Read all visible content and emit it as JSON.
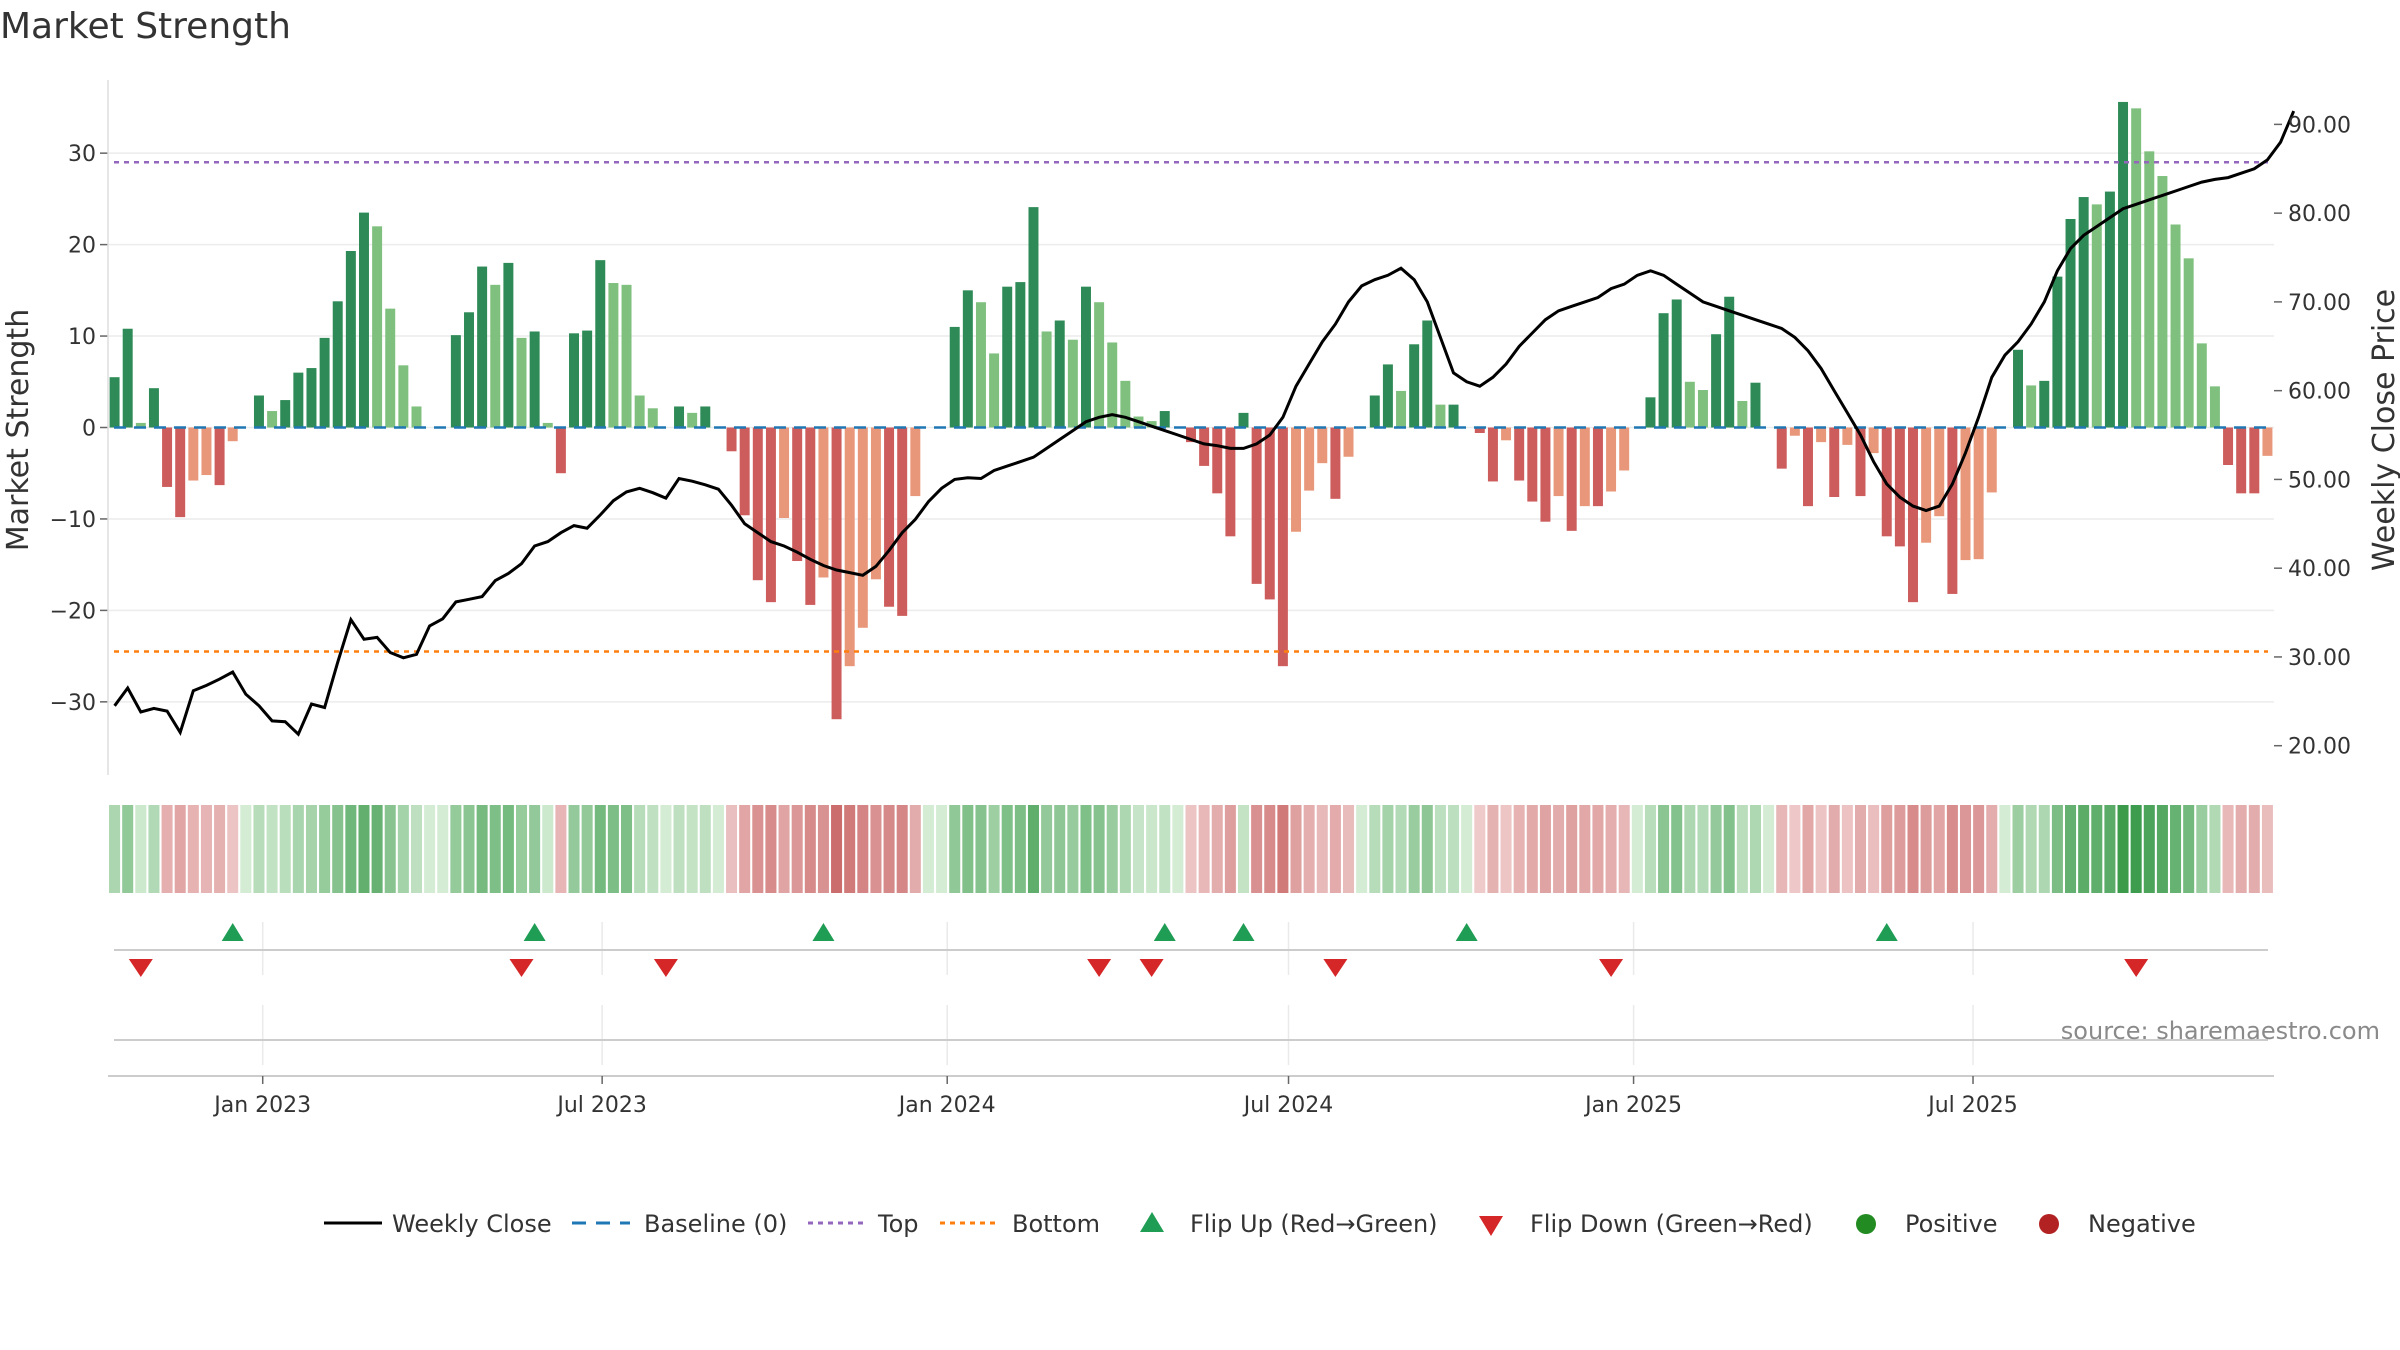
{
  "title": "Market Strength",
  "source": "source: sharemaestro.com",
  "colors": {
    "dark_green": "#2e8b57",
    "light_green": "#7fc07f",
    "dark_red": "#cd5c5c",
    "light_red": "#e8977a",
    "baseline": "#1f77b4",
    "top": "#9467bd",
    "bottom": "#ff7f0e",
    "close": "#000000",
    "flip_up": "#1f9d55",
    "flip_down": "#d62728",
    "positive": "#228b22",
    "negative": "#b22222"
  },
  "chart_data": {
    "type": "bar",
    "x_start": "2022-10-14",
    "x_step_days": 7,
    "x_ticks": [
      "Jan 2023",
      "Jul 2023",
      "Jan 2024",
      "Jul 2024",
      "Jan 2025",
      "Jul 2025"
    ],
    "y_left": {
      "label": "Market Strength",
      "ticks": [
        -30,
        -20,
        -10,
        0,
        10,
        20,
        30
      ],
      "range": [
        -38,
        38
      ]
    },
    "y_right": {
      "label": "Weekly Close Price",
      "ticks": [
        "20.00",
        "30.00",
        "40.00",
        "50.00",
        "60.00",
        "70.00",
        "80.00",
        "90.00"
      ],
      "range": [
        16.7,
        95
      ]
    },
    "top_level": 29,
    "bottom_level": -24.5,
    "baseline": 0,
    "strength": [
      5.5,
      10.8,
      0.5,
      4.3,
      -6.5,
      -9.8,
      -5.8,
      -5.2,
      -6.3,
      -1.5,
      0,
      3.5,
      1.8,
      3,
      6,
      6.5,
      9.8,
      13.8,
      19.3,
      23.5,
      22,
      13,
      6.8,
      2.3,
      0,
      0,
      10.1,
      12.6,
      17.6,
      15.6,
      18,
      9.8,
      10.5,
      0.5,
      -5.0,
      10.3,
      10.6,
      18.3,
      15.8,
      15.6,
      3.5,
      2.1,
      0,
      2.3,
      1.6,
      2.3,
      0,
      -2.6,
      -9.6,
      -16.7,
      -19.1,
      -9.9,
      -14.6,
      -19.4,
      -16.4,
      -31.9,
      -26.1,
      -21.9,
      -16.6,
      -19.6,
      -20.6,
      -7.5,
      0,
      0,
      11,
      15,
      13.7,
      8.1,
      15.4,
      15.9,
      24.1,
      10.5,
      11.7,
      9.6,
      15.4,
      13.7,
      9.3,
      5.1,
      1.2,
      0.7,
      1.8,
      0,
      -1.6,
      -4.2,
      -7.2,
      -11.9,
      1.6,
      -17.1,
      -18.8,
      -26.1,
      -11.4,
      -6.9,
      -3.9,
      -7.8,
      -3.2,
      0,
      3.5,
      6.9,
      4,
      9.1,
      11.7,
      2.5,
      2.5,
      0,
      -0.6,
      -5.9,
      -1.4,
      -5.8,
      -8.1,
      -10.3,
      -7.5,
      -11.3,
      -8.6,
      -8.6,
      -7,
      -4.7,
      0,
      3.3,
      12.5,
      14,
      5,
      4.1,
      10.2,
      14.3,
      2.9,
      4.9,
      0,
      -4.5,
      -0.9,
      -8.6,
      -1.6,
      -7.6,
      -1.9,
      -7.5,
      -2.8,
      -11.9,
      -13,
      -19.1,
      -12.6,
      -9.7,
      -18.2,
      -14.5,
      -14.4,
      -7.1,
      0,
      8.5,
      4.6,
      5.1,
      16.5,
      22.8,
      25.2,
      24.4,
      25.8,
      35.6,
      34.9,
      30.2,
      27.5,
      22.2,
      18.5,
      9.2,
      4.5,
      -4.1,
      -7.2,
      -7.2,
      -3.1
    ],
    "weekly_close": [
      24.5,
      26.5,
      23.8,
      24.2,
      23.9,
      21.5,
      26.2,
      26.8,
      27.5,
      28.3,
      25.8,
      24.5,
      22.8,
      22.7,
      21.3,
      24.7,
      24.3,
      29.4,
      34.2,
      32.0,
      32.2,
      30.5,
      29.9,
      30.3,
      33.5,
      34.3,
      36.2,
      36.5,
      36.8,
      38.6,
      39.4,
      40.5,
      42.5,
      43.0,
      44.0,
      44.8,
      44.5,
      46.0,
      47.6,
      48.6,
      49.0,
      48.5,
      47.9,
      50.1,
      49.8,
      49.4,
      48.9,
      47.1,
      45.0,
      44.0,
      43.0,
      42.5,
      41.8,
      41.0,
      40.3,
      39.8,
      39.5,
      39.2,
      40.2,
      42.0,
      44.0,
      45.5,
      47.5,
      49.0,
      50.0,
      50.2,
      50.1,
      51.0,
      51.5,
      52.0,
      52.5,
      53.5,
      54.5,
      55.5,
      56.5,
      57.0,
      57.3,
      57.0,
      56.5,
      56.0,
      55.5,
      55.0,
      54.5,
      54.0,
      53.8,
      53.5,
      53.5,
      54.0,
      55.0,
      57.0,
      60.5,
      63.0,
      65.5,
      67.5,
      70.0,
      71.8,
      72.5,
      73.0,
      73.8,
      72.5,
      70.0,
      66.0,
      62.0,
      61.0,
      60.5,
      61.5,
      63.0,
      65.0,
      66.5,
      68.0,
      69.0,
      69.5,
      70.0,
      70.5,
      71.5,
      72.0,
      73.0,
      73.5,
      73.0,
      72.0,
      71.0,
      70.0,
      69.5,
      69.0,
      68.5,
      68.0,
      67.5,
      67.0,
      66.0,
      64.5,
      62.5,
      60.0,
      57.5,
      55.0,
      52.0,
      49.5,
      48.0,
      47.0,
      46.5,
      47.0,
      49.5,
      53.0,
      57.0,
      61.5,
      64.0,
      65.5,
      67.5,
      70.0,
      73.5,
      76.0,
      77.5,
      78.5,
      79.5,
      80.5,
      81.0,
      81.5,
      82.0,
      82.5,
      83.0,
      83.5,
      83.8,
      84.0,
      84.5,
      85.0,
      86.0,
      88.0,
      91.5
    ],
    "flip_up": [
      "2022-12-16",
      "2023-05-26",
      "2023-10-27",
      "2024-04-26",
      "2024-06-07",
      "2024-10-04",
      "2025-05-16"
    ],
    "flip_down": [
      "2022-10-28",
      "2023-05-19",
      "2023-08-04",
      "2024-03-22",
      "2024-04-19",
      "2024-07-26",
      "2024-12-20",
      "2025-09-26"
    ]
  },
  "legend": {
    "weekly_close": "Weekly Close",
    "baseline": "Baseline (0)",
    "top": "Top",
    "bottom": "Bottom",
    "flip_up": "Flip Up (Red→Green)",
    "flip_down": "Flip Down (Green→Red)",
    "positive": "Positive",
    "negative": "Negative"
  }
}
